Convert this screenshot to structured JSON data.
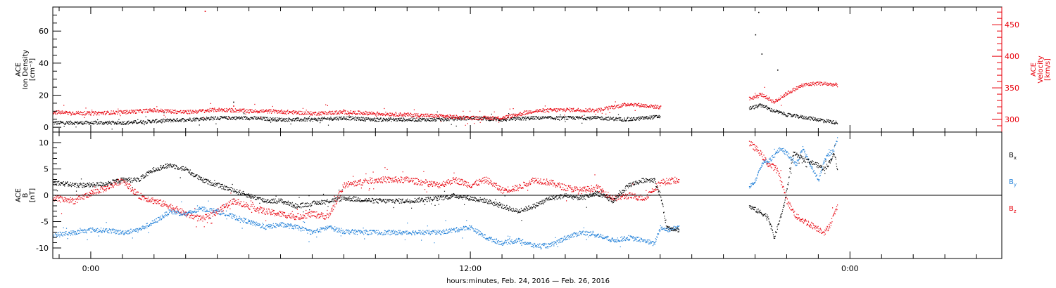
{
  "xaxis_title": "hours:minutes, Feb. 24, 2016 — Feb. 26, 2016",
  "colors": {
    "black": "#000000",
    "red": "#e8000b",
    "blue": "#1f7fd8"
  },
  "chart_data": [
    {
      "type": "scatter",
      "panel": "top",
      "ylabel_left": [
        "ACE",
        "Ion Density",
        "[cm⁻³]"
      ],
      "ylabel_right": [
        "ACE",
        "Velocity",
        "[km/s]"
      ],
      "x_unit": "hours from Feb. 24, 2016 00:00",
      "xlim": [
        -1.2,
        28.8
      ],
      "x_tick_labels": [
        {
          "x": 0,
          "label": "0:00"
        },
        {
          "x": 12,
          "label": "12:00"
        },
        {
          "x": 24,
          "label": "0:00"
        }
      ],
      "ylim": [
        -3,
        75
      ],
      "y_ticks": [
        0,
        20,
        40,
        60
      ],
      "y2lim": [
        280,
        478
      ],
      "y2_ticks": [
        300,
        350,
        400,
        450
      ],
      "series": [
        {
          "color": "black",
          "axis": "left",
          "points": [
            [
              -1.2,
              3
            ],
            [
              0,
              3
            ],
            [
              1,
              3
            ],
            [
              2,
              4
            ],
            [
              3,
              5
            ],
            [
              4,
              6
            ],
            [
              5,
              6
            ],
            [
              6,
              5
            ],
            [
              7,
              5
            ],
            [
              8,
              6
            ],
            [
              9,
              5
            ],
            [
              10,
              5
            ],
            [
              11,
              5
            ],
            [
              12,
              6
            ],
            [
              13,
              5
            ],
            [
              14,
              6
            ],
            [
              15,
              6
            ],
            [
              16,
              6
            ],
            [
              17,
              5
            ],
            [
              18,
              7
            ],
            [
              20.8,
              12
            ],
            [
              21.2,
              14
            ],
            [
              21.5,
              11
            ],
            [
              22,
              8
            ],
            [
              23,
              5
            ],
            [
              23.6,
              3
            ]
          ],
          "spikes": [
            [
              4.5,
              16
            ],
            [
              21.1,
              72
            ],
            [
              21.0,
              58
            ],
            [
              21.2,
              46
            ],
            [
              21.7,
              36
            ]
          ]
        },
        {
          "color": "red",
          "axis": "right",
          "points": [
            [
              -1.2,
              312
            ],
            [
              0,
              310
            ],
            [
              1,
              312
            ],
            [
              2,
              315
            ],
            [
              3,
              312
            ],
            [
              4,
              316
            ],
            [
              5,
              314
            ],
            [
              6,
              313
            ],
            [
              7,
              310
            ],
            [
              8,
              312
            ],
            [
              9,
              310
            ],
            [
              10,
              308
            ],
            [
              11,
              306
            ],
            [
              12,
              303
            ],
            [
              13,
              303
            ],
            [
              14,
              314
            ],
            [
              15,
              316
            ],
            [
              16,
              315
            ],
            [
              17,
              325
            ],
            [
              18,
              320
            ],
            [
              20.8,
              333
            ],
            [
              21.2,
              340
            ],
            [
              21.6,
              328
            ],
            [
              22.0,
              342
            ],
            [
              22.5,
              355
            ],
            [
              23.0,
              358
            ],
            [
              23.6,
              355
            ]
          ],
          "spikes": [
            [
              3.6,
              472
            ],
            [
              4.5,
              322
            ],
            [
              18.0,
              322
            ]
          ]
        }
      ],
      "gap": [
        18.6,
        20.7
      ]
    },
    {
      "type": "scatter",
      "panel": "bottom",
      "ylabel_left": [
        "ACE",
        "B",
        "[nT]"
      ],
      "xlim": [
        -1.2,
        28.8
      ],
      "ylim": [
        -12,
        12
      ],
      "y_ticks": [
        10,
        5,
        0,
        -5,
        -10
      ],
      "legend": [
        {
          "label": "B",
          "sub": "x",
          "color": "black"
        },
        {
          "label": "B",
          "sub": "y",
          "color": "blue"
        },
        {
          "label": "B",
          "sub": "z",
          "color": "red"
        }
      ],
      "series": [
        {
          "name": "Bx",
          "color": "black",
          "points": [
            [
              -1.2,
              2.5
            ],
            [
              -0.5,
              2
            ],
            [
              0,
              2
            ],
            [
              0.5,
              2.3
            ],
            [
              1,
              3
            ],
            [
              1.5,
              3
            ],
            [
              2,
              5
            ],
            [
              2.5,
              5.8
            ],
            [
              3,
              5
            ],
            [
              3.5,
              3
            ],
            [
              4,
              2
            ],
            [
              4.5,
              1
            ],
            [
              5,
              0
            ],
            [
              5.5,
              -1
            ],
            [
              6,
              -1
            ],
            [
              6.5,
              -2
            ],
            [
              7,
              -1.5
            ],
            [
              7.5,
              -1
            ],
            [
              8,
              -0.5
            ],
            [
              9,
              -1
            ],
            [
              10,
              -1
            ],
            [
              11,
              -0.5
            ],
            [
              11.5,
              0
            ],
            [
              12,
              -0.5
            ],
            [
              12.5,
              -1
            ],
            [
              13,
              -2
            ],
            [
              13.5,
              -3
            ],
            [
              14,
              -2
            ],
            [
              14.5,
              -0.5
            ],
            [
              15,
              0
            ],
            [
              15.5,
              -0.5
            ],
            [
              16,
              0.5
            ],
            [
              16.5,
              -1
            ],
            [
              17,
              2
            ],
            [
              17.5,
              3
            ],
            [
              17.8,
              3
            ],
            [
              18.0,
              0
            ],
            [
              18.2,
              -6
            ],
            [
              18.6,
              -6.5
            ],
            [
              20.8,
              -2
            ],
            [
              21.1,
              -3
            ],
            [
              21.4,
              -4
            ],
            [
              21.6,
              -8
            ],
            [
              21.9,
              -2
            ],
            [
              22.2,
              8
            ],
            [
              22.5,
              7
            ],
            [
              22.9,
              6
            ],
            [
              23.2,
              5
            ],
            [
              23.5,
              8
            ],
            [
              23.6,
              5
            ]
          ]
        },
        {
          "name": "By",
          "color": "blue",
          "points": [
            [
              -1.2,
              -7.5
            ],
            [
              -0.5,
              -7
            ],
            [
              0,
              -6.5
            ],
            [
              0.5,
              -6.6
            ],
            [
              1,
              -7
            ],
            [
              1.5,
              -6.5
            ],
            [
              2,
              -5
            ],
            [
              2.5,
              -3
            ],
            [
              3,
              -3.5
            ],
            [
              3.5,
              -2.5
            ],
            [
              4,
              -3
            ],
            [
              4.5,
              -4
            ],
            [
              5,
              -5
            ],
            [
              5.5,
              -6
            ],
            [
              6,
              -5.5
            ],
            [
              6.5,
              -6
            ],
            [
              7,
              -7
            ],
            [
              7.5,
              -6
            ],
            [
              8,
              -6.8
            ],
            [
              9,
              -7
            ],
            [
              10,
              -7
            ],
            [
              11,
              -7
            ],
            [
              11.5,
              -6.5
            ],
            [
              12,
              -6
            ],
            [
              12.5,
              -8
            ],
            [
              13,
              -9
            ],
            [
              13.5,
              -8.5
            ],
            [
              14,
              -9.5
            ],
            [
              14.5,
              -9.5
            ],
            [
              15,
              -8
            ],
            [
              15.5,
              -7
            ],
            [
              16,
              -7.5
            ],
            [
              16.5,
              -8.5
            ],
            [
              17,
              -8
            ],
            [
              17.5,
              -8.5
            ],
            [
              17.8,
              -9.2
            ],
            [
              18.0,
              -6
            ],
            [
              18.2,
              -6.5
            ],
            [
              18.6,
              -6
            ],
            [
              20.8,
              1.5
            ],
            [
              21.0,
              3
            ],
            [
              21.2,
              6
            ],
            [
              21.5,
              7
            ],
            [
              21.8,
              9
            ],
            [
              22.0,
              8
            ],
            [
              22.3,
              6
            ],
            [
              22.5,
              9
            ],
            [
              22.8,
              5
            ],
            [
              23.0,
              3
            ],
            [
              23.2,
              7
            ],
            [
              23.5,
              9
            ],
            [
              23.6,
              11
            ]
          ]
        },
        {
          "name": "Bz",
          "color": "red",
          "points": [
            [
              -1.2,
              -0.5
            ],
            [
              -0.5,
              -1
            ],
            [
              0,
              0.5
            ],
            [
              0.5,
              1.5
            ],
            [
              1,
              3
            ],
            [
              1.5,
              0
            ],
            [
              2,
              -1
            ],
            [
              2.5,
              -2
            ],
            [
              3,
              -3.5
            ],
            [
              3.5,
              -4.5
            ],
            [
              4,
              -3
            ],
            [
              4.5,
              -1
            ],
            [
              5,
              -2
            ],
            [
              5.5,
              -3
            ],
            [
              6,
              -3.5
            ],
            [
              6.5,
              -4
            ],
            [
              7,
              -3.5
            ],
            [
              7.5,
              -4
            ],
            [
              8,
              2
            ],
            [
              9,
              3
            ],
            [
              10,
              3
            ],
            [
              11,
              2
            ],
            [
              11.5,
              3
            ],
            [
              12,
              2
            ],
            [
              12.5,
              3
            ],
            [
              13,
              1
            ],
            [
              13.5,
              1.5
            ],
            [
              14,
              3
            ],
            [
              14.5,
              2.5
            ],
            [
              15,
              1.5
            ],
            [
              15.5,
              1
            ],
            [
              16,
              1.5
            ],
            [
              16.5,
              -0.5
            ],
            [
              17,
              0
            ],
            [
              17.5,
              -0.5
            ],
            [
              18.0,
              2.5
            ],
            [
              18.3,
              2.8
            ],
            [
              18.6,
              3
            ],
            [
              20.8,
              10
            ],
            [
              21.1,
              8.5
            ],
            [
              21.4,
              6
            ],
            [
              21.7,
              5
            ],
            [
              22.0,
              -1
            ],
            [
              22.3,
              -4
            ],
            [
              22.6,
              -5
            ],
            [
              22.9,
              -6
            ],
            [
              23.2,
              -7
            ],
            [
              23.4,
              -5
            ],
            [
              23.6,
              -2
            ]
          ]
        }
      ],
      "gap": [
        18.6,
        20.7
      ]
    }
  ]
}
